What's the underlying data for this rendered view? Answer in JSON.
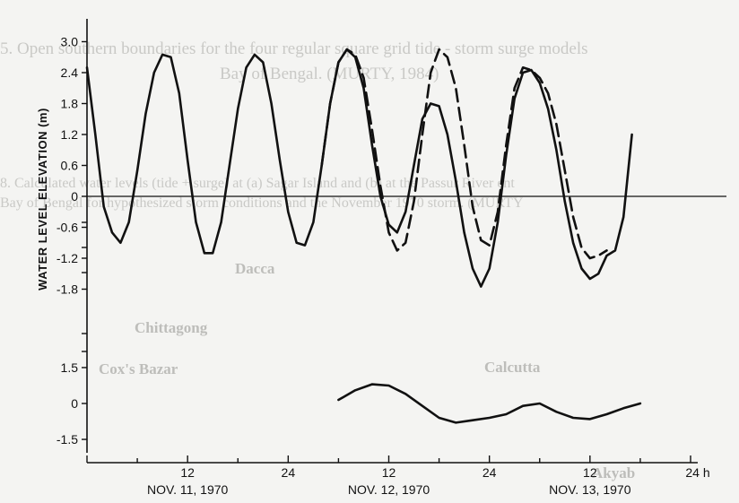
{
  "background_text": {
    "line1": "5. Open southern boundaries for the four regular square grid tide - storm surge models",
    "line2": "Bay of Bengal. (MURTY, 1984)",
    "line3": "8. Calculated water levels (tide + surge) at (a) Sagar Island and (b) at the Passur River ent",
    "line4": "Bay of Bengal for hypothesized storm conditions and the November 1970 storm. (MURTY",
    "places": [
      "Dacca",
      "Chittagong",
      "Cox's Bazar",
      "Calcutta",
      "Akyab"
    ]
  },
  "chart_data": {
    "type": "line",
    "ylabel": "WATER LEVEL ELEVATION (m)",
    "x_ticks": [
      "12",
      "24",
      "12",
      "24",
      "12",
      "24 h"
    ],
    "x_dates": [
      "NOV. 11, 1970",
      "NOV. 12, 1970",
      "NOV. 13, 1970"
    ],
    "x_unit": "hours",
    "xlim": [
      0,
      72
    ],
    "panels": [
      {
        "name": "upper",
        "yticks": [
          "3.0",
          "2.4",
          "1.8",
          "1.2",
          "0.6",
          "0",
          "-0.6",
          "-1.2",
          "-1.8"
        ],
        "ylim": [
          -1.8,
          3.0
        ],
        "series": [
          {
            "style": "solid",
            "x": [
              0,
              1,
              2,
              3,
              4,
              5,
              6,
              7,
              8,
              9,
              10,
              11,
              12,
              13,
              14,
              15,
              16,
              17,
              18,
              19,
              20,
              21,
              22,
              23,
              24,
              25,
              26,
              27,
              28,
              29,
              30,
              31,
              32,
              33,
              34,
              35,
              36,
              37,
              38,
              39,
              40,
              41,
              42,
              43,
              44,
              45,
              46,
              47,
              48,
              49,
              50,
              51,
              52,
              53,
              54,
              55,
              56,
              57,
              58,
              59,
              60,
              61,
              62,
              63,
              64,
              65,
              66,
              67,
              68,
              69,
              70
            ],
            "y": [
              2.5,
              1.2,
              -0.2,
              -0.7,
              -0.9,
              -0.5,
              0.5,
              1.6,
              2.4,
              2.75,
              2.7,
              2.0,
              0.7,
              -0.5,
              -1.1,
              -1.1,
              -0.5,
              0.6,
              1.7,
              2.5,
              2.75,
              2.6,
              1.8,
              0.7,
              -0.3,
              -0.9,
              -0.95,
              -0.5,
              0.6,
              1.8,
              2.6,
              2.85,
              2.7,
              2.1,
              1.0,
              0.0,
              -0.55,
              -0.7,
              -0.3,
              0.6,
              1.5,
              1.8,
              1.75,
              1.2,
              0.3,
              -0.7,
              -1.4,
              -1.75,
              -1.4,
              -0.5,
              0.8,
              1.9,
              2.4,
              2.45,
              2.2,
              1.7,
              0.9,
              -0.1,
              -0.9,
              -1.4,
              -1.6,
              -1.5,
              -1.15,
              -1.05,
              -0.4,
              1.2,
              null,
              null,
              null,
              null,
              null
            ]
          },
          {
            "style": "dashed",
            "x": [
              28,
              29,
              30,
              31,
              32,
              33,
              34,
              35,
              36,
              37,
              38,
              39,
              40,
              41,
              42,
              43,
              44,
              45,
              46,
              47,
              48,
              49,
              50,
              51,
              52,
              53,
              54,
              55,
              56,
              57,
              58,
              59,
              60,
              61,
              62
            ],
            "y": [
              0.6,
              1.8,
              2.6,
              2.85,
              2.75,
              2.3,
              1.3,
              0.2,
              -0.7,
              -1.05,
              -0.9,
              -0.1,
              1.2,
              2.4,
              2.85,
              2.7,
              2.1,
              1.0,
              -0.2,
              -0.85,
              -0.95,
              -0.3,
              1.0,
              2.1,
              2.5,
              2.45,
              2.3,
              2.0,
              1.4,
              0.5,
              -0.4,
              -1.0,
              -1.2,
              -1.15,
              -1.05
            ]
          }
        ]
      },
      {
        "name": "lower",
        "yticks": [
          "1.5",
          "0",
          "-1.5"
        ],
        "ylim": [
          -1.5,
          1.5
        ],
        "series": [
          {
            "style": "solid",
            "x": [
              30,
              32,
              34,
              36,
              38,
              40,
              42,
              44,
              46,
              48,
              50,
              52,
              54,
              56,
              58,
              60,
              62,
              64,
              66
            ],
            "y": [
              0.15,
              0.55,
              0.8,
              0.75,
              0.4,
              -0.1,
              -0.6,
              -0.8,
              -0.7,
              -0.6,
              -0.45,
              -0.1,
              0.0,
              -0.35,
              -0.6,
              -0.65,
              -0.45,
              -0.2,
              0.0
            ]
          }
        ]
      }
    ]
  }
}
